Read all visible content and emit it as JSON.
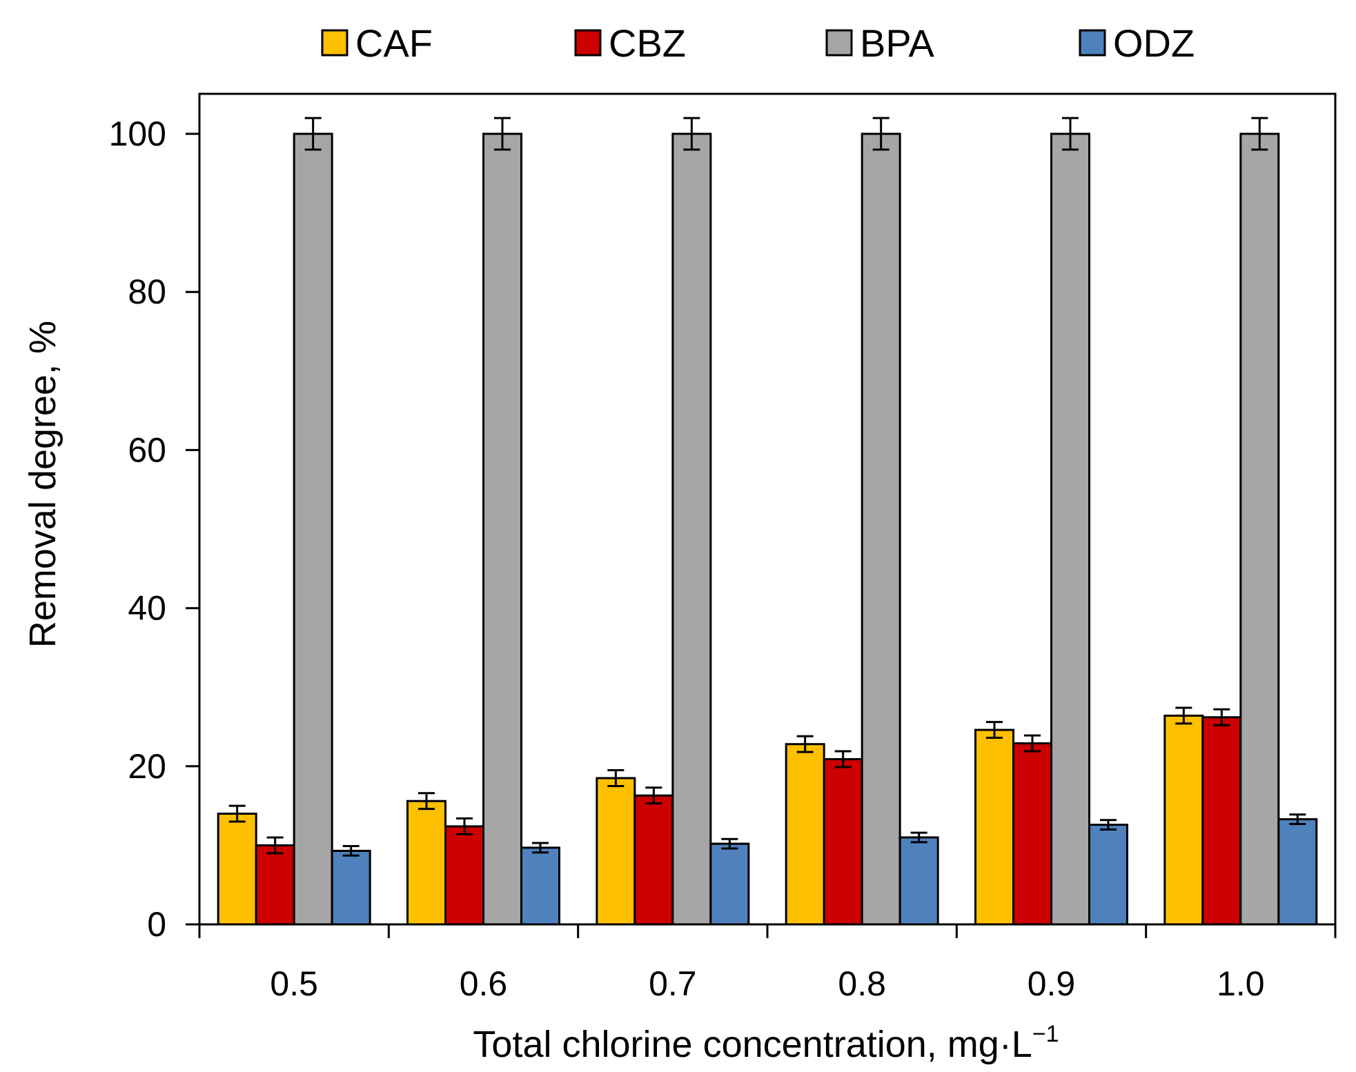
{
  "chart_data": {
    "type": "bar",
    "title": "",
    "xlabel": "Total chlorine concentration, mg·L",
    "xlabel_superscript": "−1",
    "ylabel": "Removal degree, %",
    "ylim": [
      0,
      100
    ],
    "yticks": [
      0,
      20,
      40,
      60,
      80,
      100
    ],
    "categories": [
      "0.5",
      "0.6",
      "0.7",
      "0.8",
      "0.9",
      "1.0"
    ],
    "legend_position": "top",
    "grid": false,
    "series": [
      {
        "name": "CAF",
        "color": "#FFC000",
        "values": [
          14.0,
          15.6,
          18.5,
          22.8,
          24.6,
          26.4
        ],
        "errors": [
          1.0,
          1.0,
          1.0,
          1.0,
          1.0,
          1.0
        ]
      },
      {
        "name": "CBZ",
        "color": "#CC0000",
        "values": [
          10.0,
          12.4,
          16.3,
          20.9,
          22.9,
          26.2
        ],
        "errors": [
          1.0,
          1.0,
          1.0,
          1.0,
          1.0,
          1.0
        ]
      },
      {
        "name": "BPA",
        "color": "#A6A6A6",
        "values": [
          100,
          100,
          100,
          100,
          100,
          100
        ],
        "errors": [
          2.0,
          2.0,
          2.0,
          2.0,
          2.0,
          2.0
        ]
      },
      {
        "name": "ODZ",
        "color": "#4F81BD",
        "values": [
          9.3,
          9.7,
          10.2,
          11.0,
          12.6,
          13.3
        ],
        "errors": [
          0.6,
          0.6,
          0.6,
          0.6,
          0.6,
          0.6
        ]
      }
    ]
  }
}
